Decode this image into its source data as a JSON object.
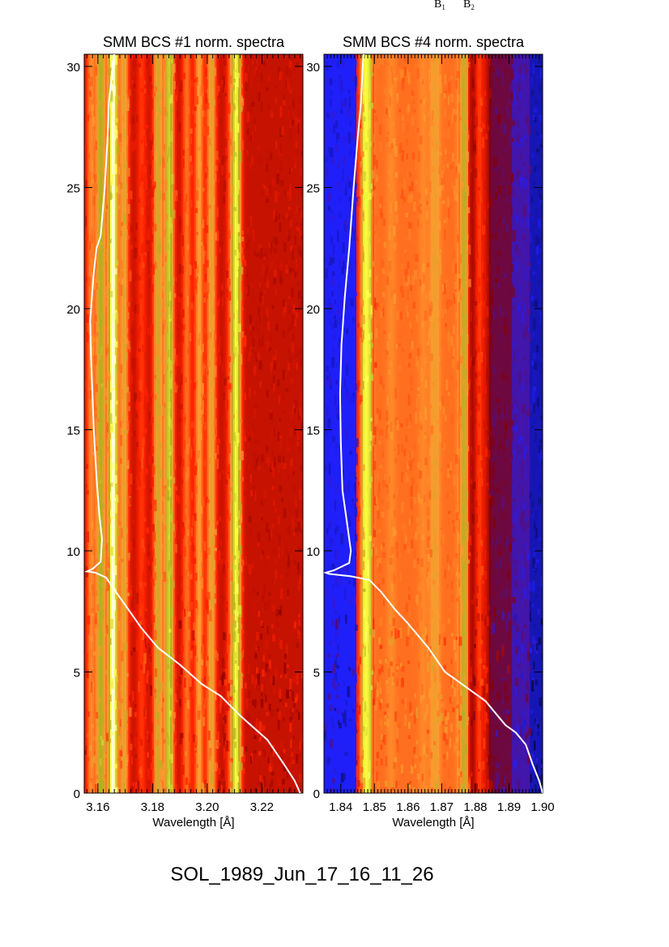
{
  "figure": {
    "caption": "SOL_1989_Jun_17_16_11_26",
    "top_labels": [
      "B",
      "B"
    ],
    "top_label_subscripts": [
      "1",
      "2"
    ]
  },
  "chart_data": [
    {
      "type": "heatmap",
      "title": "SMM BCS #1 norm. spectra",
      "xlabel": "Wavelength [Å]",
      "ylabel": "",
      "xlim": [
        3.155,
        3.235
      ],
      "ylim": [
        0,
        30.5
      ],
      "xticks": [
        3.16,
        3.18,
        3.2,
        3.22
      ],
      "xtick_labels": [
        "3.16",
        "3.18",
        "3.20",
        "3.22"
      ],
      "yticks": [
        0,
        5,
        10,
        15,
        20,
        25,
        30
      ],
      "ytick_labels": [
        "0",
        "5",
        "10",
        "15",
        "20",
        "25",
        "30"
      ],
      "colormap": [
        "#000000",
        "#2020ff",
        "#880000",
        "#ff2200",
        "#ff9a30",
        "#b0b020",
        "#ffff40",
        "#ffffff"
      ],
      "bands": [
        {
          "x": 3.1575,
          "level": 0.55
        },
        {
          "x": 3.161,
          "level": 0.72
        },
        {
          "x": 3.1655,
          "level": 0.97
        },
        {
          "x": 3.1695,
          "level": 0.62
        },
        {
          "x": 3.176,
          "level": 0.45
        },
        {
          "x": 3.182,
          "level": 0.66
        },
        {
          "x": 3.186,
          "level": 0.78
        },
        {
          "x": 3.1925,
          "level": 0.52
        },
        {
          "x": 3.197,
          "level": 0.58
        },
        {
          "x": 3.2015,
          "level": 0.62
        },
        {
          "x": 3.2085,
          "level": 0.45
        },
        {
          "x": 3.2105,
          "level": 0.85
        }
      ],
      "base_level": 0.36,
      "curve": {
        "x": [
          3.234,
          3.232,
          3.228,
          3.222,
          3.218,
          3.212,
          3.205,
          3.198,
          3.19,
          3.182,
          3.176,
          3.171,
          3.166,
          3.163,
          3.159,
          3.156,
          3.158,
          3.161,
          3.1615,
          3.1605,
          3.1595,
          3.1585,
          3.158,
          3.1575,
          3.1572,
          3.1578,
          3.1585,
          3.1595,
          3.161,
          3.1625,
          3.1635,
          3.164,
          3.1655,
          3.166
        ],
        "y": [
          0,
          0.5,
          1.2,
          2.2,
          2.6,
          3.2,
          4.0,
          4.5,
          5.3,
          6.0,
          6.8,
          7.6,
          8.4,
          8.9,
          9.1,
          9.15,
          9.25,
          9.55,
          10.5,
          11.5,
          13.0,
          15.0,
          16.5,
          18.0,
          19.5,
          20.5,
          21.5,
          22.5,
          23.0,
          25.0,
          27.0,
          28.5,
          30.0,
          30.5
        ]
      }
    },
    {
      "type": "heatmap",
      "title": "SMM BCS #4 norm. spectra",
      "xlabel": "Wavelength [Å]",
      "ylabel": "",
      "xlim": [
        1.835,
        1.9
      ],
      "ylim": [
        0,
        30.5
      ],
      "xticks": [
        1.84,
        1.85,
        1.86,
        1.87,
        1.88,
        1.89,
        1.9
      ],
      "xtick_labels": [
        "1.84",
        "1.85",
        "1.86",
        "1.87",
        "1.88",
        "1.89",
        "1.90"
      ],
      "yticks": [
        0,
        5,
        10,
        15,
        20,
        25,
        30
      ],
      "ytick_labels": [
        "0",
        "5",
        "10",
        "15",
        "20",
        "25",
        "30"
      ],
      "colormap": [
        "#000000",
        "#2020ff",
        "#880000",
        "#ff2200",
        "#ff9a30",
        "#b0b020",
        "#ffff40",
        "#ffffff"
      ],
      "segments": [
        {
          "x0": 1.835,
          "x1": 1.8445,
          "level": 0.14
        },
        {
          "x0": 1.8445,
          "x1": 1.8465,
          "level": 0.42
        },
        {
          "x0": 1.8465,
          "x1": 1.849,
          "level": 0.72
        },
        {
          "x0": 1.849,
          "x1": 1.85,
          "level": 0.45
        },
        {
          "x0": 1.85,
          "x1": 1.875,
          "level": 0.52
        },
        {
          "x0": 1.875,
          "x1": 1.878,
          "level": 0.4
        },
        {
          "x0": 1.878,
          "x1": 1.884,
          "level": 0.3
        },
        {
          "x0": 1.884,
          "x1": 1.891,
          "level": 0.25
        },
        {
          "x0": 1.891,
          "x1": 1.896,
          "level": 0.19
        },
        {
          "x0": 1.896,
          "x1": 1.9,
          "level": 0.1
        }
      ],
      "bands": [
        {
          "x": 1.8475,
          "level": 0.85
        },
        {
          "x": 1.852,
          "level": 0.45
        },
        {
          "x": 1.855,
          "level": 0.55
        },
        {
          "x": 1.86,
          "level": 0.42
        },
        {
          "x": 1.8645,
          "level": 0.55
        },
        {
          "x": 1.868,
          "level": 0.6
        },
        {
          "x": 1.8715,
          "level": 0.48
        },
        {
          "x": 1.8765,
          "level": 0.68
        },
        {
          "x": 1.8812,
          "level": 0.46
        },
        {
          "x": 1.8822,
          "level": 0.4
        }
      ],
      "curve": {
        "x": [
          1.9,
          1.899,
          1.897,
          1.895,
          1.892,
          1.889,
          1.886,
          1.883,
          1.879,
          1.876,
          1.871,
          1.866,
          1.86,
          1.856,
          1.852,
          1.8485,
          1.843,
          1.8365,
          1.8355,
          1.838,
          1.8425,
          1.843,
          1.842,
          1.8405,
          1.84,
          1.8398,
          1.8402,
          1.8412,
          1.8425,
          1.8438,
          1.845,
          1.846,
          1.8465,
          1.8468
        ],
        "y": [
          0,
          0.5,
          1.2,
          2.0,
          2.5,
          2.8,
          3.3,
          3.8,
          4.2,
          4.5,
          5.0,
          6.0,
          7.0,
          7.6,
          8.3,
          8.8,
          8.95,
          9.05,
          9.1,
          9.2,
          9.5,
          10.0,
          11.0,
          12.5,
          14.5,
          16.5,
          18.5,
          20.5,
          22.5,
          25.0,
          27.0,
          28.5,
          30.0,
          30.5
        ]
      }
    }
  ]
}
